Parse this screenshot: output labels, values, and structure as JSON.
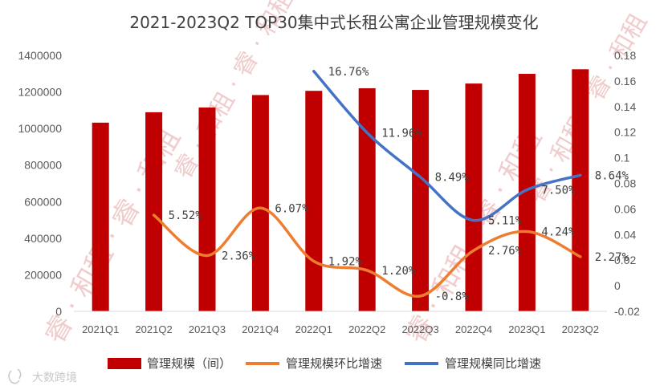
{
  "chart_data": {
    "type": "bar+line",
    "title": "2021-2023Q2 TOP30集中式长租公寓企业管理规模变化",
    "categories": [
      "2021Q1",
      "2021Q2",
      "2021Q3",
      "2021Q4",
      "2022Q1",
      "2022Q2",
      "2022Q3",
      "2022Q4",
      "2023Q1",
      "2023Q2"
    ],
    "left_axis": {
      "min": 0,
      "max": 1400000,
      "ticks": [
        "0",
        "200000",
        "400000",
        "600000",
        "800000",
        "1000000",
        "1200000",
        "1400000"
      ]
    },
    "right_axis": {
      "min": -0.02,
      "max": 0.18,
      "ticks": [
        "-0.02",
        "0",
        "0.02",
        "0.04",
        "0.06",
        "0.08",
        "0.1",
        "0.12",
        "0.14",
        "0.16",
        "0.18"
      ]
    },
    "series": [
      {
        "name": "管理规模（间）",
        "type": "bar",
        "axis": "left",
        "color": "#c00000",
        "values": [
          1032000,
          1089000,
          1115000,
          1183000,
          1206000,
          1220000,
          1211000,
          1246000,
          1299000,
          1324000
        ]
      },
      {
        "name": "管理规模环比增速",
        "type": "line",
        "axis": "right",
        "color": "#ed7d31",
        "values": [
          null,
          0.0552,
          0.0236,
          0.0607,
          0.0192,
          0.012,
          -0.008,
          0.0276,
          0.0424,
          0.0227
        ],
        "labels": [
          "",
          "5.52%",
          "2.36%",
          "6.07%",
          "1.92%",
          "1.20%",
          "-0.8%",
          "2.76%",
          "4.24%",
          "2.27%"
        ]
      },
      {
        "name": "管理规模同比增速",
        "type": "line",
        "axis": "right",
        "color": "#4472c4",
        "values": [
          null,
          null,
          null,
          null,
          0.1676,
          0.1196,
          0.0849,
          0.0511,
          0.075,
          0.0864
        ],
        "labels": [
          "",
          "",
          "",
          "",
          "16.76%",
          "11.96%",
          "8.49%",
          "5.11%",
          "7.50%",
          "8.64%"
        ]
      }
    ]
  },
  "watermark": {
    "text": "睿 · 和租 · 睿 · 和租"
  },
  "footer": {
    "brand": "大数跨境",
    "icon": "logo-icon"
  }
}
